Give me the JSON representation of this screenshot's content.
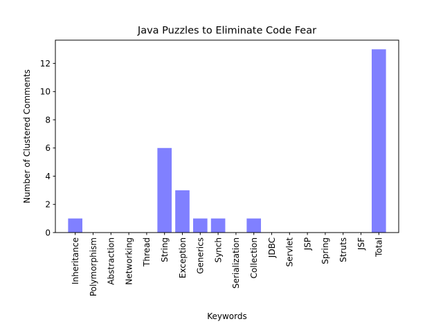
{
  "chart_data": {
    "type": "bar",
    "title": "Java Puzzles to Eliminate Code Fear",
    "xlabel": "Keywords",
    "ylabel": "Number of Clustered Comments",
    "categories": [
      "Inheritance",
      "Polymorphism",
      "Abstraction",
      "Networking",
      "Thread",
      "String",
      "Exception",
      "Generics",
      "Synch",
      "Serialization",
      "Collection",
      "JDBC",
      "Servlet",
      "JSP",
      "Spring",
      "Struts",
      "JSF",
      "Total"
    ],
    "values": [
      1,
      0,
      0,
      0,
      0,
      6,
      3,
      1,
      1,
      0,
      1,
      0,
      0,
      0,
      0,
      0,
      0,
      13
    ],
    "ylim": [
      0,
      13.65
    ],
    "yticks": [
      0,
      2,
      4,
      6,
      8,
      10,
      12
    ],
    "grid": false,
    "bar_color": "#8080ff"
  }
}
